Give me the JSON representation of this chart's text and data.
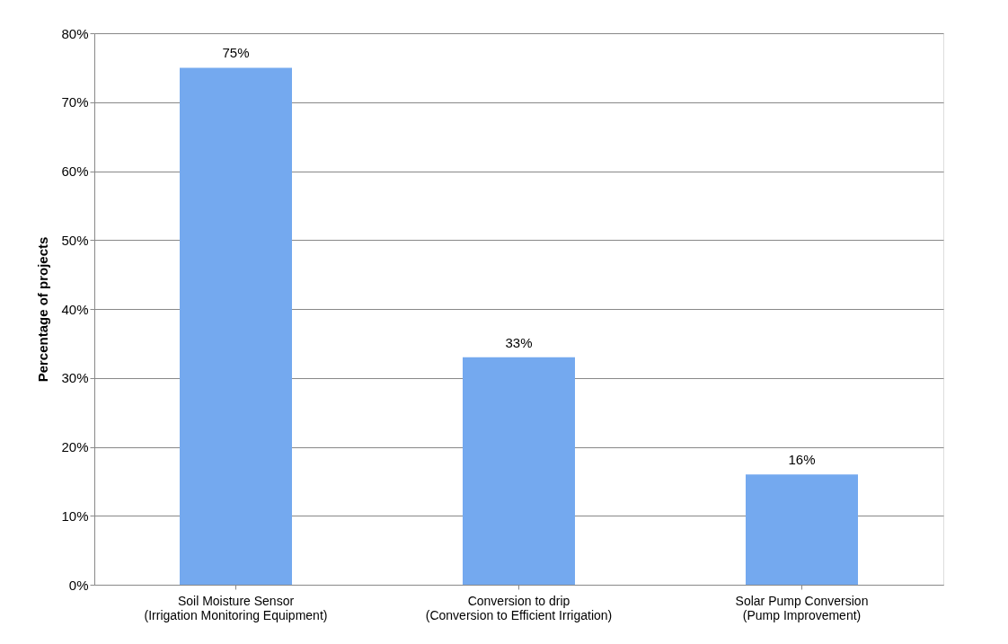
{
  "chart_data": {
    "type": "bar",
    "ylabel": "Percentage of projects",
    "categories": [
      "Soil Moisture Sensor\n(Irrigation  Monitoring  Equipment)",
      "Conversion  to drip\n(Conversion  to  Efficient  Irrigation)",
      "Solar Pump Conversion\n(Pump Improvement)"
    ],
    "values": [
      75,
      33,
      16
    ],
    "color": "#74a9ef",
    "value_labels": [
      "75%",
      "33%",
      "16%"
    ],
    "ylim": [
      0,
      80
    ],
    "yticks": [
      {
        "value": 0,
        "label": "0%"
      },
      {
        "value": 10,
        "label": "10%"
      },
      {
        "value": 20,
        "label": "20%"
      },
      {
        "value": 30,
        "label": "30%"
      },
      {
        "value": 40,
        "label": "40%"
      },
      {
        "value": 50,
        "label": "50%"
      },
      {
        "value": 60,
        "label": "60%"
      },
      {
        "value": 70,
        "label": "70%"
      },
      {
        "value": 80,
        "label": "80%"
      }
    ],
    "grid": "y"
  }
}
